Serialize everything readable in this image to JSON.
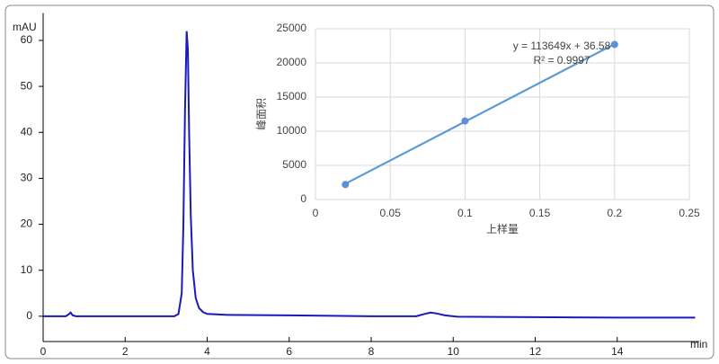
{
  "chart_data": [
    {
      "type": "line",
      "y_label": "mAU",
      "x_label": "min",
      "grid": false,
      "x": [
        0,
        0.55,
        0.62,
        0.67,
        0.72,
        0.8,
        3.2,
        3.3,
        3.38,
        3.42,
        3.46,
        3.5,
        3.53,
        3.56,
        3.6,
        3.65,
        3.72,
        3.8,
        3.9,
        4.0,
        4.5,
        6,
        8,
        9.1,
        9.3,
        9.45,
        9.6,
        9.8,
        10.1,
        12,
        14,
        15.9
      ],
      "series": [
        {
          "color": "#1a1ab8",
          "values": [
            0,
            0,
            0.4,
            0.8,
            0.2,
            0,
            0,
            0.5,
            5,
            20,
            45,
            62,
            58,
            40,
            22,
            10,
            4,
            1.8,
            0.9,
            0.5,
            0.3,
            0.2,
            0,
            0,
            0.5,
            0.8,
            0.6,
            0.2,
            -0.1,
            -0.2,
            -0.3,
            -0.3
          ]
        }
      ],
      "xlim": [
        0,
        16
      ],
      "xticks": [
        0,
        2,
        4,
        6,
        8,
        10,
        12,
        14
      ],
      "ylim": [
        -5.5,
        64
      ],
      "yticks": [
        0,
        10,
        20,
        30,
        40,
        50,
        60
      ]
    },
    {
      "type": "scatter",
      "x_label": "上样量",
      "y_label": "峰面积",
      "grid": true,
      "annotations": [
        "y = 113649x + 36.58",
        "R² = 0.9997"
      ],
      "x": [
        0.02,
        0.1,
        0.2
      ],
      "series": [
        {
          "color": "#5b8fd9",
          "values": [
            2200,
            11500,
            22700
          ]
        }
      ],
      "trendline": {
        "color": "#5b9bd5",
        "x": [
          0.02,
          0.2
        ],
        "values": [
          2310,
          22766
        ]
      },
      "xlim": [
        0,
        0.25
      ],
      "xticks": [
        0,
        0.05,
        0.1,
        0.15,
        0.2,
        0.25
      ],
      "ylim": [
        0,
        25000
      ],
      "yticks": [
        0,
        5000,
        10000,
        15000,
        20000,
        25000
      ]
    }
  ]
}
